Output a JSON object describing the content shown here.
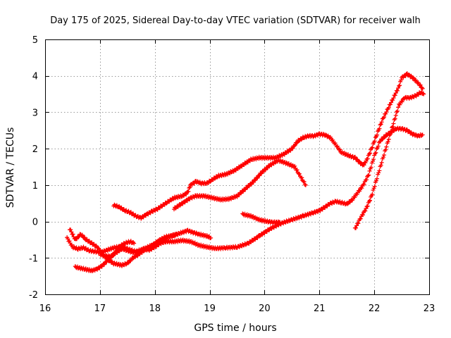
{
  "chart_data": {
    "type": "scatter",
    "title": "Day 175 of 2025, Sidereal Day-to-day VTEC variation (SDTVAR) for receiver walh",
    "xlabel": "GPS time / hours",
    "ylabel": "SDTVAR / TECUs",
    "xlim": [
      16,
      23
    ],
    "ylim": [
      -2,
      5
    ],
    "x_ticks": [
      16,
      17,
      18,
      19,
      20,
      21,
      22,
      23
    ],
    "y_ticks": [
      -2,
      -1,
      0,
      1,
      2,
      3,
      4,
      5
    ],
    "grid": true,
    "marker": "plus",
    "series": [
      {
        "color": "#ff0000",
        "tracks": [
          [
            [
              16.4,
              -0.45
            ],
            [
              16.5,
              -0.7
            ],
            [
              16.6,
              -0.75
            ],
            [
              16.7,
              -0.72
            ],
            [
              16.8,
              -0.8
            ],
            [
              16.9,
              -0.82
            ],
            [
              17.0,
              -0.85
            ],
            [
              17.1,
              -0.8
            ],
            [
              17.25,
              -0.72
            ],
            [
              17.4,
              -0.68
            ],
            [
              17.5,
              -0.75
            ],
            [
              17.6,
              -0.8
            ],
            [
              17.7,
              -0.85
            ],
            [
              17.8,
              -0.75
            ],
            [
              17.9,
              -0.78
            ],
            [
              18.0,
              -0.7
            ],
            [
              18.1,
              -0.6
            ],
            [
              18.2,
              -0.55
            ],
            [
              18.35,
              -0.55
            ],
            [
              18.5,
              -0.52
            ],
            [
              18.65,
              -0.55
            ],
            [
              18.8,
              -0.65
            ],
            [
              18.95,
              -0.7
            ],
            [
              19.1,
              -0.74
            ],
            [
              19.3,
              -0.72
            ],
            [
              19.5,
              -0.7
            ],
            [
              19.7,
              -0.6
            ],
            [
              19.9,
              -0.4
            ],
            [
              20.1,
              -0.2
            ],
            [
              20.3,
              -0.05
            ],
            [
              20.5,
              0.05
            ],
            [
              20.7,
              0.15
            ],
            [
              20.9,
              0.25
            ],
            [
              21.0,
              0.3
            ],
            [
              21.1,
              0.4
            ],
            [
              21.2,
              0.5
            ],
            [
              21.3,
              0.55
            ],
            [
              21.4,
              0.52
            ],
            [
              21.5,
              0.48
            ],
            [
              21.6,
              0.6
            ],
            [
              21.7,
              0.8
            ],
            [
              21.8,
              1.0
            ],
            [
              21.9,
              1.3
            ],
            [
              22.0,
              1.8
            ],
            [
              22.1,
              2.2
            ],
            [
              22.2,
              2.35
            ],
            [
              22.3,
              2.45
            ],
            [
              22.4,
              2.55
            ],
            [
              22.5,
              2.55
            ],
            [
              22.6,
              2.5
            ],
            [
              22.7,
              2.4
            ],
            [
              22.8,
              2.35
            ],
            [
              22.88,
              2.38
            ]
          ]
        ]
      },
      {
        "color": "#ff0000",
        "tracks": [
          [
            [
              16.45,
              -0.2
            ],
            [
              16.55,
              -0.5
            ],
            [
              16.65,
              -0.35
            ],
            [
              16.75,
              -0.5
            ],
            [
              16.85,
              -0.6
            ],
            [
              16.95,
              -0.7
            ],
            [
              17.05,
              -0.9
            ],
            [
              17.15,
              -1.05
            ],
            [
              17.25,
              -1.15
            ],
            [
              17.4,
              -1.2
            ],
            [
              17.5,
              -1.15
            ],
            [
              17.6,
              -1.0
            ],
            [
              17.7,
              -0.9
            ],
            [
              17.85,
              -0.75
            ],
            [
              18.0,
              -0.62
            ],
            [
              18.1,
              -0.5
            ],
            [
              18.2,
              -0.42
            ],
            [
              18.35,
              -0.38
            ],
            [
              18.5,
              -0.3
            ],
            [
              18.6,
              -0.25
            ],
            [
              18.7,
              -0.3
            ],
            [
              18.8,
              -0.35
            ],
            [
              18.95,
              -0.4
            ],
            [
              19.02,
              -0.45
            ]
          ]
        ]
      },
      {
        "color": "#ff0000",
        "tracks": [
          [
            [
              16.55,
              -1.25
            ],
            [
              16.7,
              -1.3
            ],
            [
              16.85,
              -1.35
            ],
            [
              16.95,
              -1.3
            ],
            [
              17.05,
              -1.2
            ],
            [
              17.15,
              -1.05
            ],
            [
              17.25,
              -0.9
            ],
            [
              17.35,
              -0.7
            ],
            [
              17.45,
              -0.6
            ],
            [
              17.55,
              -0.55
            ],
            [
              17.62,
              -0.6
            ]
          ],
          [
            [
              17.0,
              -0.9
            ],
            [
              17.1,
              -0.95
            ],
            [
              17.2,
              -0.95
            ],
            [
              17.3,
              -0.85
            ],
            [
              17.4,
              -0.75
            ],
            [
              17.5,
              -0.8
            ],
            [
              17.6,
              -0.85
            ],
            [
              17.7,
              -0.8
            ],
            [
              17.8,
              -0.75
            ],
            [
              17.95,
              -0.65
            ],
            [
              18.05,
              -0.55
            ],
            [
              18.2,
              -0.45
            ],
            [
              18.3,
              -0.4
            ],
            [
              18.4,
              -0.35
            ]
          ]
        ]
      },
      {
        "color": "#ff0000",
        "tracks": [
          [
            [
              17.25,
              0.45
            ],
            [
              17.35,
              0.4
            ],
            [
              17.45,
              0.3
            ],
            [
              17.55,
              0.25
            ],
            [
              17.65,
              0.15
            ],
            [
              17.75,
              0.1
            ],
            [
              17.85,
              0.2
            ],
            [
              17.95,
              0.28
            ],
            [
              18.05,
              0.35
            ],
            [
              18.15,
              0.45
            ],
            [
              18.25,
              0.55
            ],
            [
              18.35,
              0.65
            ],
            [
              18.5,
              0.7
            ],
            [
              18.6,
              0.8
            ],
            [
              18.65,
              1.0
            ],
            [
              18.75,
              1.1
            ],
            [
              18.85,
              1.05
            ],
            [
              18.95,
              1.05
            ],
            [
              19.05,
              1.15
            ],
            [
              19.15,
              1.25
            ],
            [
              19.3,
              1.3
            ],
            [
              19.45,
              1.4
            ],
            [
              19.6,
              1.55
            ],
            [
              19.75,
              1.7
            ],
            [
              19.9,
              1.75
            ],
            [
              20.05,
              1.75
            ],
            [
              20.2,
              1.75
            ],
            [
              20.35,
              1.85
            ],
            [
              20.5,
              2.0
            ],
            [
              20.6,
              2.2
            ],
            [
              20.7,
              2.3
            ],
            [
              20.8,
              2.35
            ],
            [
              20.9,
              2.35
            ],
            [
              21.0,
              2.4
            ],
            [
              21.1,
              2.38
            ],
            [
              21.2,
              2.3
            ],
            [
              21.3,
              2.1
            ],
            [
              21.4,
              1.9
            ],
            [
              21.55,
              1.8
            ],
            [
              21.65,
              1.75
            ],
            [
              21.75,
              1.6
            ],
            [
              21.8,
              1.55
            ],
            [
              21.85,
              1.65
            ],
            [
              21.95,
              2.0
            ],
            [
              22.05,
              2.4
            ],
            [
              22.15,
              2.8
            ],
            [
              22.25,
              3.1
            ],
            [
              22.35,
              3.4
            ],
            [
              22.45,
              3.7
            ],
            [
              22.5,
              3.95
            ],
            [
              22.6,
              4.05
            ],
            [
              22.7,
              3.95
            ],
            [
              22.8,
              3.8
            ],
            [
              22.88,
              3.65
            ]
          ]
        ]
      },
      {
        "color": "#ff0000",
        "tracks": [
          [
            [
              18.35,
              0.35
            ],
            [
              18.45,
              0.45
            ],
            [
              18.55,
              0.55
            ],
            [
              18.65,
              0.65
            ],
            [
              18.75,
              0.7
            ],
            [
              18.9,
              0.7
            ],
            [
              19.05,
              0.65
            ],
            [
              19.2,
              0.6
            ],
            [
              19.35,
              0.62
            ],
            [
              19.5,
              0.7
            ],
            [
              19.65,
              0.9
            ],
            [
              19.8,
              1.1
            ],
            [
              19.95,
              1.35
            ],
            [
              20.1,
              1.55
            ],
            [
              20.25,
              1.68
            ],
            [
              20.4,
              1.6
            ],
            [
              20.55,
              1.5
            ],
            [
              20.65,
              1.25
            ],
            [
              20.75,
              1.0
            ]
          ]
        ]
      },
      {
        "color": "#ff0000",
        "tracks": [
          [
            [
              19.6,
              0.2
            ],
            [
              19.75,
              0.15
            ],
            [
              19.9,
              0.05
            ],
            [
              20.05,
              0.0
            ],
            [
              20.15,
              -0.02
            ],
            [
              20.28,
              -0.02
            ]
          ]
        ]
      },
      {
        "color": "#ff0000",
        "tracks": [
          [
            [
              21.65,
              -0.2
            ],
            [
              21.75,
              0.1
            ],
            [
              21.85,
              0.35
            ],
            [
              21.95,
              0.7
            ],
            [
              22.05,
              1.2
            ],
            [
              22.15,
              1.7
            ],
            [
              22.25,
              2.2
            ],
            [
              22.35,
              2.7
            ],
            [
              22.45,
              3.2
            ],
            [
              22.55,
              3.4
            ],
            [
              22.65,
              3.4
            ],
            [
              22.75,
              3.45
            ],
            [
              22.85,
              3.55
            ],
            [
              22.9,
              3.5
            ]
          ]
        ]
      }
    ]
  }
}
